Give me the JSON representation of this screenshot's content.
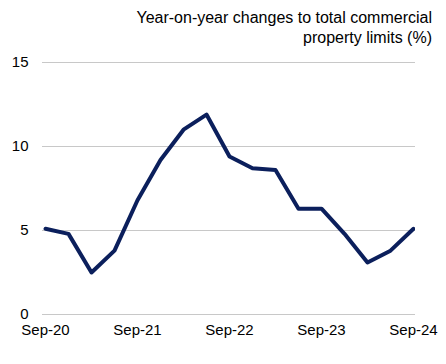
{
  "chart_data": {
    "type": "line",
    "title": "Year-on-year changes to total commercial property limits (%)",
    "x": [
      "Sep-20",
      null,
      null,
      null,
      "Sep-21",
      null,
      null,
      null,
      "Sep-22",
      null,
      null,
      null,
      "Sep-23",
      null,
      null,
      null,
      "Sep-24"
    ],
    "values": [
      5.1,
      4.8,
      2.5,
      3.8,
      6.8,
      9.2,
      11.0,
      11.9,
      9.4,
      8.7,
      8.6,
      6.3,
      6.3,
      4.8,
      3.1,
      3.8,
      5.1
    ],
    "color": "#0b1f5c",
    "ylim": [
      0,
      15
    ],
    "yticks": [
      0,
      5,
      10,
      15
    ],
    "grid": true
  }
}
